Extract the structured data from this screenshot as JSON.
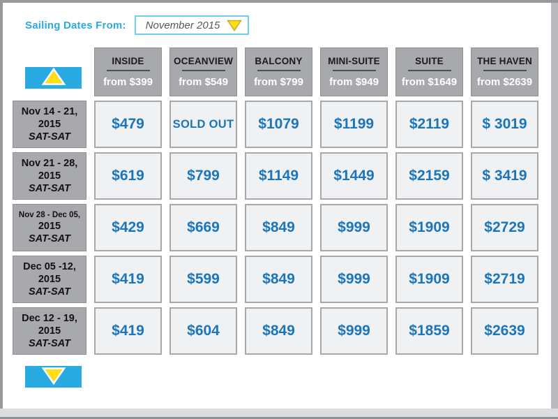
{
  "filter": {
    "label": "Sailing Dates From:",
    "value": "November 2015",
    "dropdown_icon": "yellow-down-triangle"
  },
  "scroll": {
    "up_icon": "yellow-up-triangle",
    "down_icon": "yellow-down-triangle"
  },
  "table": {
    "columns": [
      {
        "name": "INSIDE",
        "from": "from $399"
      },
      {
        "name": "OCEANVIEW",
        "from": "from $549"
      },
      {
        "name": "BALCONY",
        "from": "from $799"
      },
      {
        "name": "MINI-SUITE",
        "from": "from $949"
      },
      {
        "name": "SUITE",
        "from": "from $1649"
      },
      {
        "name": "THE HAVEN",
        "from": "from $2639"
      }
    ],
    "rows": [
      {
        "dates": "Nov 14 - 21,",
        "year": "2015",
        "days": "SAT-SAT",
        "prices": [
          "$479",
          "SOLD OUT",
          "$1079",
          "$1199",
          "$2119",
          "$ 3019"
        ]
      },
      {
        "dates": "Nov 21 - 28,",
        "year": "2015",
        "days": "SAT-SAT",
        "prices": [
          "$619",
          "$799",
          "$1149",
          "$1449",
          "$2159",
          "$ 3419"
        ]
      },
      {
        "dates": "Nov 28 - Dec 05,",
        "year": "2015",
        "days": "SAT-SAT",
        "prices": [
          "$429",
          "$669",
          "$849",
          "$999",
          "$1909",
          "$2729"
        ]
      },
      {
        "dates": "Dec 05 -12,",
        "year": "2015",
        "days": "SAT-SAT",
        "prices": [
          "$419",
          "$599",
          "$849",
          "$999",
          "$1909",
          "$2719"
        ]
      },
      {
        "dates": "Dec 12 - 19,",
        "year": "2015",
        "days": "SAT-SAT",
        "prices": [
          "$419",
          "$604",
          "$849",
          "$999",
          "$1859",
          "$2639"
        ]
      }
    ]
  },
  "colors": {
    "accent_cyan": "#29abe2",
    "accent_yellow": "#ffde17",
    "price_blue": "#1b75bc",
    "header_gray": "#a7a9ac",
    "cell_bg": "#f0f1f2"
  }
}
